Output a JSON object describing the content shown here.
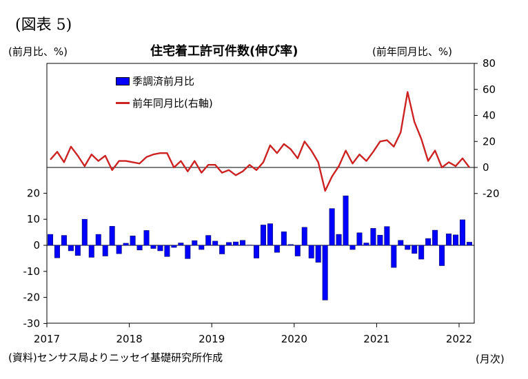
{
  "figure_label": "(図表 5)",
  "left_axis_unit": "(前月比、%)",
  "right_axis_unit": "(前年同月比、%)",
  "source_note": "(資料)センサス局よりニッセイ基礎研究所作成",
  "x_axis_unit": "(月次)",
  "chart_data": {
    "type": "bar+line",
    "title": "住宅着工許可件数(伸び率)",
    "x_start": "2017-01",
    "x_tick_labels": [
      "2017",
      "2018",
      "2019",
      "2020",
      "2021",
      "2022"
    ],
    "left_axis": {
      "ticks": [
        "20",
        "10",
        "0",
        "-10",
        "-20",
        "-30"
      ],
      "ylim": [
        -30,
        20
      ]
    },
    "right_axis": {
      "ticks": [
        "80",
        "60",
        "40",
        "20",
        "0",
        "-20"
      ],
      "ylim": [
        -20,
        80
      ]
    },
    "gridlines": false,
    "series": [
      {
        "name": "季調済前月比",
        "type": "bar",
        "axis": "left",
        "color": "#0000ff",
        "values": [
          4.2,
          -4.8,
          3.8,
          -2.1,
          -3.9,
          10.0,
          -4.6,
          4.2,
          -4.1,
          7.3,
          -3.2,
          0.8,
          3.6,
          -1.8,
          5.7,
          -1.2,
          -2.1,
          -4.3,
          -0.8,
          0.9,
          -5.1,
          1.8,
          -1.6,
          3.8,
          1.6,
          -3.3,
          1.1,
          1.3,
          1.9,
          0.1,
          -4.9,
          7.8,
          8.3,
          -2.7,
          5.2,
          0.3,
          -4.1,
          6.9,
          -4.9,
          -6.5,
          -21.0,
          14.1,
          4.2,
          19.0,
          -1.6,
          4.8,
          0.9,
          6.5,
          3.9,
          7.2,
          -8.5,
          1.9,
          -1.6,
          -3.1,
          -5.3,
          2.6,
          5.8,
          -7.8,
          4.4,
          4.0,
          9.8,
          1.2
        ]
      },
      {
        "name": "前年同月比(右軸)",
        "type": "line",
        "axis": "right",
        "color": "#cc2222",
        "values": [
          6,
          12,
          4,
          16,
          9,
          1,
          10,
          5,
          9,
          -2,
          5,
          5,
          4,
          3,
          8,
          10,
          11,
          11,
          0,
          5,
          -3,
          5,
          -4,
          2,
          2,
          -4,
          -2,
          -6,
          -3,
          2,
          -2,
          4,
          17,
          11,
          18,
          14,
          7,
          20,
          13,
          4,
          -18,
          -7,
          1,
          13,
          3,
          10,
          5,
          12,
          20,
          21,
          16,
          27,
          58,
          35,
          22,
          5,
          13,
          0,
          4,
          1,
          7,
          0
        ]
      }
    ]
  }
}
